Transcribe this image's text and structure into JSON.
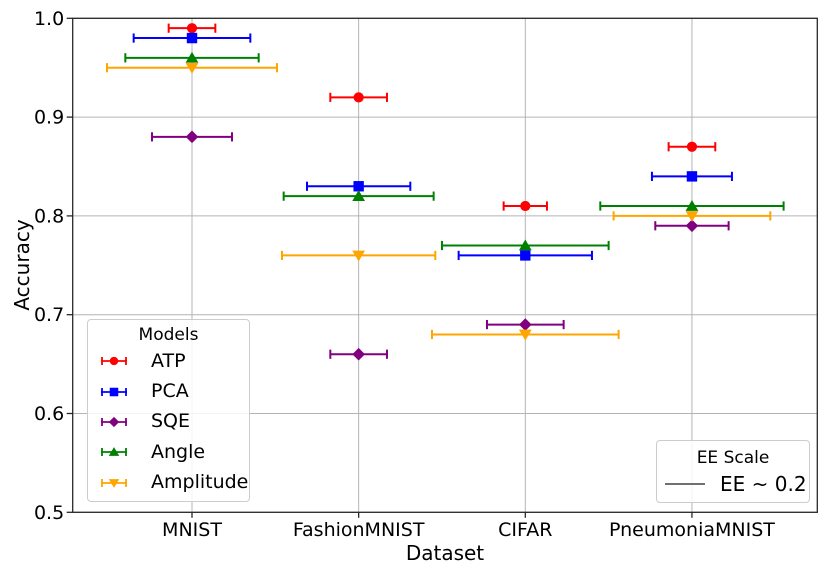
{
  "chart_data": {
    "type": "scatter",
    "title": "",
    "xlabel": "Dataset",
    "ylabel": "Accuracy",
    "categories": [
      "MNIST",
      "FashionMNIST",
      "CIFAR",
      "PneumoniaMNIST"
    ],
    "ylim": [
      0.5,
      1.0
    ],
    "yticks": [
      1.0,
      0.9,
      0.8,
      0.7,
      0.6,
      0.5
    ],
    "grid": true,
    "errorbar_orientation": "horizontal",
    "xerr_units": "fraction of category spacing (half-width)",
    "series": [
      {
        "name": "ATP",
        "marker": "circle",
        "color": "#ff0000",
        "accuracy": [
          0.99,
          0.92,
          0.81,
          0.87
        ],
        "xerr": [
          0.14,
          0.17,
          0.13,
          0.14
        ]
      },
      {
        "name": "PCA",
        "marker": "square",
        "color": "#0000ff",
        "accuracy": [
          0.98,
          0.83,
          0.76,
          0.84
        ],
        "xerr": [
          0.35,
          0.31,
          0.4,
          0.24
        ]
      },
      {
        "name": "SQE",
        "marker": "diamond",
        "color": "#800080",
        "accuracy": [
          0.88,
          0.66,
          0.69,
          0.79
        ],
        "xerr": [
          0.24,
          0.17,
          0.23,
          0.22
        ]
      },
      {
        "name": "Angle",
        "marker": "triangle-up",
        "color": "#008000",
        "accuracy": [
          0.96,
          0.82,
          0.77,
          0.81
        ],
        "xerr": [
          0.4,
          0.45,
          0.5,
          0.55
        ]
      },
      {
        "name": "Amplitude",
        "marker": "triangle-down",
        "color": "#ffa500",
        "accuracy": [
          0.95,
          0.76,
          0.68,
          0.8
        ],
        "xerr": [
          0.51,
          0.46,
          0.56,
          0.47
        ]
      }
    ],
    "legend": {
      "models_title": "Models",
      "ee_title": "EE Scale",
      "ee_entry": "EE ~ 0.2",
      "ee_line_color": "#404040"
    },
    "colors": {
      "grid": "#b4b4b4",
      "spine": "#282828",
      "tick_text": "#000000",
      "background": "#ffffff"
    }
  }
}
